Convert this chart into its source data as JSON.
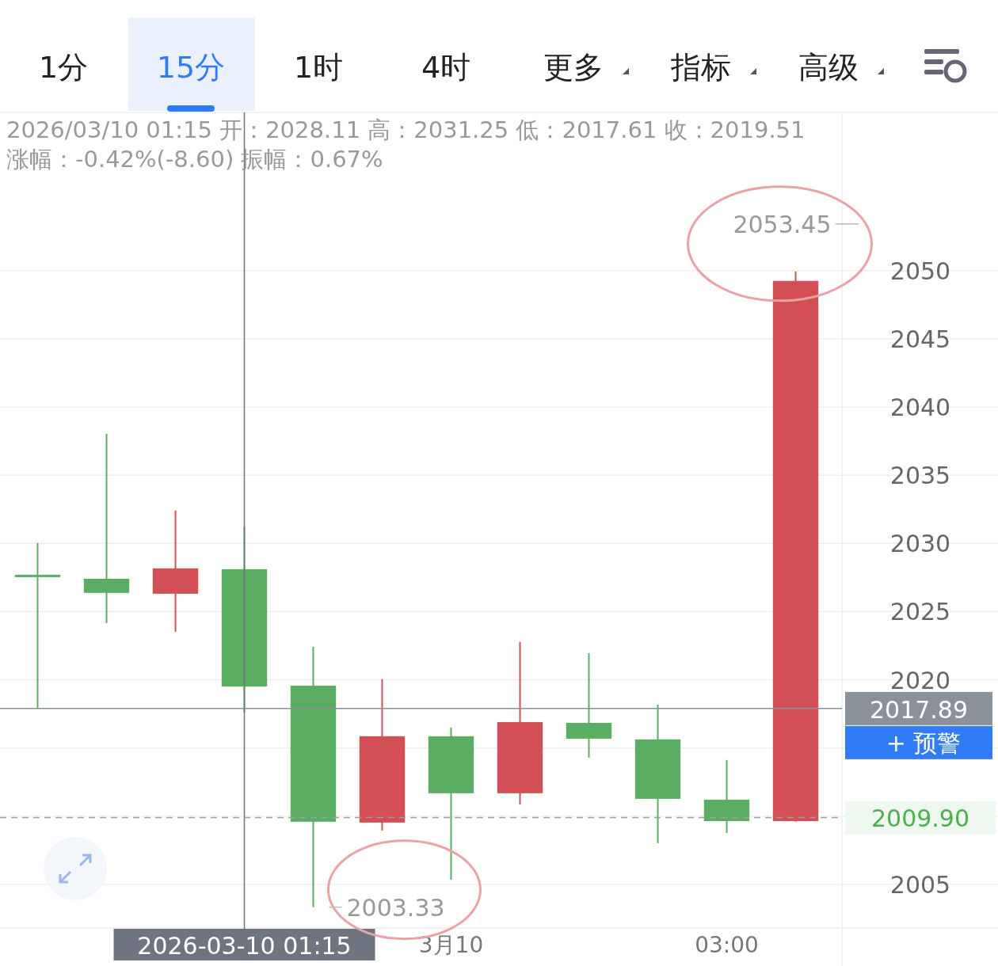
{
  "chart_data": {
    "type": "candlestick",
    "title": "2026/03/10 01:15 开：2028.11 高：2031.25 低：2017.61 收：2019.51",
    "subtitle": "涨幅：-0.42%(-8.60) 振幅：0.67%",
    "categories": [
      null,
      null,
      null,
      "2026-03-10 01:15",
      null,
      null,
      "3月10",
      null,
      null,
      null,
      "03:00",
      null
    ],
    "ohlc": [
      [
        2027.7,
        2030.03,
        2017.89,
        2027.6
      ],
      [
        2027.41,
        2038.04,
        2024.16,
        2026.37
      ],
      [
        2026.31,
        2032.41,
        2023.52,
        2028.17
      ],
      [
        2028.11,
        2031.25,
        2017.61,
        2019.51
      ],
      [
        2019.57,
        2022.42,
        2003.33,
        2009.59
      ],
      [
        2009.53,
        2020.04,
        2008.95,
        2015.86
      ],
      [
        2015.86,
        2016.5,
        2005.35,
        2011.68
      ],
      [
        2011.68,
        2022.77,
        2010.86,
        2016.9
      ],
      [
        2016.84,
        2021.95,
        2014.29,
        2015.68
      ],
      [
        2015.63,
        2018.18,
        2008.02,
        2011.27
      ],
      [
        2011.21,
        2014.12,
        2008.77,
        2009.64
      ],
      [
        2009.64,
        2049.94,
        2009.6,
        2049.25
      ]
    ],
    "colors": [
      "#5aad62",
      "#5aad62",
      "#d24f55",
      "#5aad62",
      "#5aad62",
      "#d24f55",
      "#5aad62",
      "#d24f55",
      "#5aad62",
      "#5aad62",
      "#5aad62",
      "#d24f55"
    ],
    "ylim": [
      2001.8,
      2061.6
    ],
    "yticks": [
      2005,
      {
        "value": 2010,
        "label": null
      },
      {
        "value": 2015,
        "label": null
      },
      2020,
      2025,
      2030,
      2035,
      2040,
      2045,
      2050
    ],
    "grid": "y",
    "ref_lines": [
      {
        "axis": "x",
        "value": "2026-03-10 01:15",
        "color": "#6e7580",
        "line_style": "solid"
      },
      {
        "axis": "y",
        "value": 2017.89,
        "label": "2017.89",
        "color": "#8a919b",
        "line_style": "solid"
      },
      {
        "axis": "y",
        "value": 2009.9,
        "label": "2009.90",
        "color": "#9e9e9e",
        "line_style": "dashed"
      }
    ],
    "annotations": [
      "1分",
      "15分",
      "1时",
      "4时",
      "更多",
      "指标",
      "高级",
      "+ 预警",
      "2053.45",
      "2003.33"
    ]
  }
}
